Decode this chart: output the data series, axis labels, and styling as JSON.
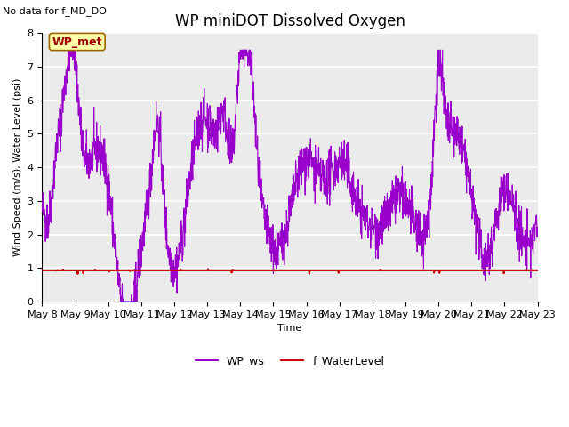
{
  "title": "WP miniDOT Dissolved Oxygen",
  "subtitle": "No data for f_MD_DO",
  "xlabel": "Time",
  "ylabel": "Wind Speed (m/s), Water Level (psi)",
  "ylim": [
    0.0,
    8.0
  ],
  "yticks": [
    0.0,
    1.0,
    2.0,
    3.0,
    4.0,
    5.0,
    6.0,
    7.0,
    8.0
  ],
  "x_labels": [
    "May 8",
    "May 9",
    "May 10",
    "May 11",
    "May 12",
    "May 13",
    "May 14",
    "May 15",
    "May 16",
    "May 17",
    "May 18",
    "May 19",
    "May 20",
    "May 21",
    "May 22",
    "May 23"
  ],
  "wp_ws_color": "#9900CC",
  "f_wl_color": "#CC0000",
  "annotation_text": "WP_met",
  "annotation_box_facecolor": "#FFFFAA",
  "annotation_box_edgecolor": "#996600",
  "annotation_text_color": "#990000",
  "background_color": "#EBEBEB",
  "legend_ws_label": "WP_ws",
  "legend_wl_label": "f_WaterLevel",
  "title_fontsize": 12,
  "axis_label_fontsize": 8,
  "tick_fontsize": 8,
  "legend_fontsize": 9,
  "seed": 42
}
